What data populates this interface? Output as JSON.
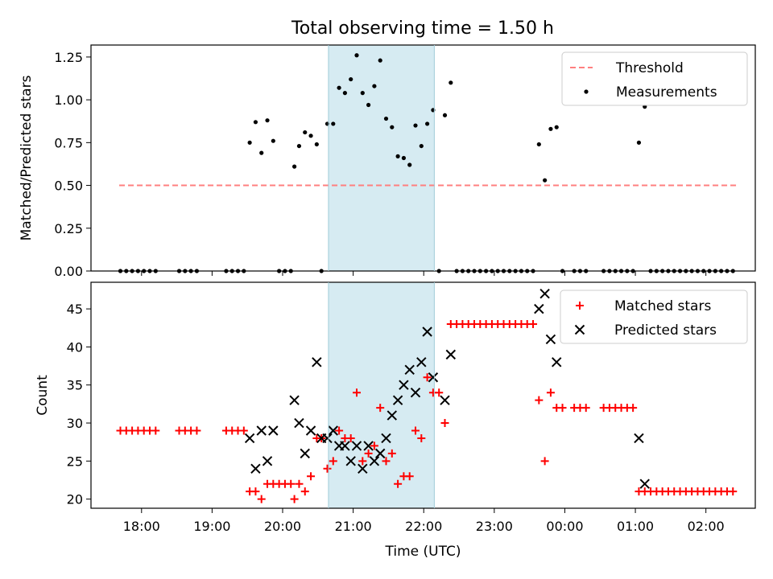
{
  "title": "Total observing time = 1.50 h",
  "chart_data": [
    {
      "type": "scatter",
      "ylabel": "Matched/Predicted stars",
      "xlabel": "",
      "xlim": [
        "17:17",
        "02:42"
      ],
      "ylim": [
        0,
        1.32
      ],
      "yticks": [
        "0.00",
        "0.25",
        "0.50",
        "0.75",
        "1.00",
        "1.25"
      ],
      "legend": "top-right",
      "highlight_window": [
        "20:39",
        "22:09"
      ],
      "series": [
        {
          "name": "Threshold",
          "style": "dashed-line",
          "color": "#ff7f7f",
          "points": [
            [
              "17:41",
              0.5
            ],
            [
              "02:27",
              0.5
            ]
          ]
        },
        {
          "name": "Measurements",
          "style": "dot",
          "color": "#000000",
          "points": [
            [
              "17:42",
              0
            ],
            [
              "17:47",
              0
            ],
            [
              "17:52",
              0
            ],
            [
              "17:57",
              0
            ],
            [
              "18:02",
              0
            ],
            [
              "18:07",
              0
            ],
            [
              "18:12",
              0
            ],
            [
              "18:32",
              0
            ],
            [
              "18:37",
              0
            ],
            [
              "18:42",
              0
            ],
            [
              "18:47",
              0
            ],
            [
              "19:12",
              0
            ],
            [
              "19:17",
              0
            ],
            [
              "19:22",
              0
            ],
            [
              "19:27",
              0
            ],
            [
              "19:32",
              0.75
            ],
            [
              "19:37",
              0.87
            ],
            [
              "19:42",
              0.69
            ],
            [
              "19:47",
              0.88
            ],
            [
              "19:52",
              0.76
            ],
            [
              "19:57",
              0
            ],
            [
              "20:02",
              0
            ],
            [
              "20:07",
              0
            ],
            [
              "20:10",
              0.61
            ],
            [
              "20:14",
              0.73
            ],
            [
              "20:19",
              0.81
            ],
            [
              "20:24",
              0.79
            ],
            [
              "20:29",
              0.74
            ],
            [
              "20:33",
              0
            ],
            [
              "20:38",
              0.86
            ],
            [
              "20:43",
              0.86
            ],
            [
              "20:48",
              1.07
            ],
            [
              "20:53",
              1.04
            ],
            [
              "20:58",
              1.12
            ],
            [
              "21:03",
              1.26
            ],
            [
              "21:08",
              1.04
            ],
            [
              "21:13",
              0.97
            ],
            [
              "21:18",
              1.08
            ],
            [
              "21:23",
              1.23
            ],
            [
              "21:28",
              0.89
            ],
            [
              "21:33",
              0.84
            ],
            [
              "21:38",
              0.67
            ],
            [
              "21:43",
              0.66
            ],
            [
              "21:48",
              0.62
            ],
            [
              "21:53",
              0.85
            ],
            [
              "21:58",
              0.73
            ],
            [
              "22:03",
              0.86
            ],
            [
              "22:08",
              0.94
            ],
            [
              "22:13",
              0
            ],
            [
              "22:18",
              0.91
            ],
            [
              "22:23",
              1.1
            ],
            [
              "22:28",
              0
            ],
            [
              "22:33",
              0
            ],
            [
              "22:38",
              0
            ],
            [
              "22:43",
              0
            ],
            [
              "22:48",
              0
            ],
            [
              "22:53",
              0
            ],
            [
              "22:58",
              0
            ],
            [
              "23:03",
              0
            ],
            [
              "23:08",
              0
            ],
            [
              "23:13",
              0
            ],
            [
              "23:18",
              0
            ],
            [
              "23:23",
              0
            ],
            [
              "23:28",
              0
            ],
            [
              "23:33",
              0
            ],
            [
              "23:38",
              0.74
            ],
            [
              "23:43",
              0.53
            ],
            [
              "23:48",
              0.83
            ],
            [
              "23:53",
              0.84
            ],
            [
              "23:58",
              0
            ],
            [
              "00:08",
              0
            ],
            [
              "00:13",
              0
            ],
            [
              "00:18",
              0
            ],
            [
              "00:33",
              0
            ],
            [
              "00:38",
              0
            ],
            [
              "00:43",
              0
            ],
            [
              "00:48",
              0
            ],
            [
              "00:53",
              0
            ],
            [
              "00:58",
              0
            ],
            [
              "01:03",
              0.75
            ],
            [
              "01:08",
              0.96
            ],
            [
              "01:13",
              0
            ],
            [
              "01:18",
              0
            ],
            [
              "01:23",
              0
            ],
            [
              "01:28",
              0
            ],
            [
              "01:33",
              0
            ],
            [
              "01:38",
              0
            ],
            [
              "01:43",
              0
            ],
            [
              "01:48",
              0
            ],
            [
              "01:53",
              0
            ],
            [
              "01:58",
              0
            ],
            [
              "02:03",
              0
            ],
            [
              "02:08",
              0
            ],
            [
              "02:13",
              0
            ],
            [
              "02:18",
              0
            ],
            [
              "02:23",
              0
            ]
          ]
        }
      ]
    },
    {
      "type": "scatter",
      "ylabel": "Count",
      "xlabel": "Time (UTC)",
      "xlim": [
        "17:17",
        "02:42"
      ],
      "ylim": [
        18.8,
        48.5
      ],
      "yticks": [
        "20",
        "25",
        "30",
        "35",
        "40",
        "45"
      ],
      "xticks": [
        "18:00",
        "19:00",
        "20:00",
        "21:00",
        "22:00",
        "23:00",
        "00:00",
        "01:00",
        "02:00"
      ],
      "legend": "top-right",
      "highlight_window": [
        "20:39",
        "22:09"
      ],
      "series": [
        {
          "name": "Matched stars",
          "style": "plus",
          "color": "#ff0000",
          "points": [
            [
              "17:42",
              29
            ],
            [
              "17:47",
              29
            ],
            [
              "17:52",
              29
            ],
            [
              "17:57",
              29
            ],
            [
              "18:02",
              29
            ],
            [
              "18:07",
              29
            ],
            [
              "18:12",
              29
            ],
            [
              "18:32",
              29
            ],
            [
              "18:37",
              29
            ],
            [
              "18:42",
              29
            ],
            [
              "18:47",
              29
            ],
            [
              "19:12",
              29
            ],
            [
              "19:17",
              29
            ],
            [
              "19:22",
              29
            ],
            [
              "19:27",
              29
            ],
            [
              "19:32",
              21
            ],
            [
              "19:37",
              21
            ],
            [
              "19:42",
              20
            ],
            [
              "19:47",
              22
            ],
            [
              "19:52",
              22
            ],
            [
              "19:57",
              22
            ],
            [
              "20:02",
              22
            ],
            [
              "20:07",
              22
            ],
            [
              "20:10",
              20
            ],
            [
              "20:14",
              22
            ],
            [
              "20:19",
              21
            ],
            [
              "20:24",
              23
            ],
            [
              "20:29",
              28
            ],
            [
              "20:33",
              28
            ],
            [
              "20:38",
              24
            ],
            [
              "20:43",
              25
            ],
            [
              "20:48",
              29
            ],
            [
              "20:53",
              28
            ],
            [
              "20:58",
              28
            ],
            [
              "21:03",
              34
            ],
            [
              "21:08",
              25
            ],
            [
              "21:13",
              26
            ],
            [
              "21:18",
              27
            ],
            [
              "21:23",
              32
            ],
            [
              "21:28",
              25
            ],
            [
              "21:33",
              26
            ],
            [
              "21:38",
              22
            ],
            [
              "21:43",
              23
            ],
            [
              "21:48",
              23
            ],
            [
              "21:53",
              29
            ],
            [
              "21:58",
              28
            ],
            [
              "22:03",
              36
            ],
            [
              "22:08",
              34
            ],
            [
              "22:13",
              34
            ],
            [
              "22:18",
              30
            ],
            [
              "22:23",
              43
            ],
            [
              "22:28",
              43
            ],
            [
              "22:33",
              43
            ],
            [
              "22:38",
              43
            ],
            [
              "22:43",
              43
            ],
            [
              "22:48",
              43
            ],
            [
              "22:53",
              43
            ],
            [
              "22:58",
              43
            ],
            [
              "23:03",
              43
            ],
            [
              "23:08",
              43
            ],
            [
              "23:13",
              43
            ],
            [
              "23:18",
              43
            ],
            [
              "23:23",
              43
            ],
            [
              "23:28",
              43
            ],
            [
              "23:33",
              43
            ],
            [
              "23:38",
              33
            ],
            [
              "23:43",
              25
            ],
            [
              "23:48",
              34
            ],
            [
              "23:53",
              32
            ],
            [
              "23:58",
              32
            ],
            [
              "00:08",
              32
            ],
            [
              "00:13",
              32
            ],
            [
              "00:18",
              32
            ],
            [
              "00:33",
              32
            ],
            [
              "00:38",
              32
            ],
            [
              "00:43",
              32
            ],
            [
              "00:48",
              32
            ],
            [
              "00:53",
              32
            ],
            [
              "00:58",
              32
            ],
            [
              "01:03",
              21
            ],
            [
              "01:08",
              21
            ],
            [
              "01:13",
              21
            ],
            [
              "01:18",
              21
            ],
            [
              "01:23",
              21
            ],
            [
              "01:28",
              21
            ],
            [
              "01:33",
              21
            ],
            [
              "01:38",
              21
            ],
            [
              "01:43",
              21
            ],
            [
              "01:48",
              21
            ],
            [
              "01:53",
              21
            ],
            [
              "01:58",
              21
            ],
            [
              "02:03",
              21
            ],
            [
              "02:08",
              21
            ],
            [
              "02:13",
              21
            ],
            [
              "02:18",
              21
            ],
            [
              "02:23",
              21
            ]
          ]
        },
        {
          "name": "Predicted stars",
          "style": "x",
          "color": "#000000",
          "points": [
            [
              "19:32",
              28
            ],
            [
              "19:37",
              24
            ],
            [
              "19:42",
              29
            ],
            [
              "19:47",
              25
            ],
            [
              "19:52",
              29
            ],
            [
              "20:10",
              33
            ],
            [
              "20:14",
              30
            ],
            [
              "20:19",
              26
            ],
            [
              "20:24",
              29
            ],
            [
              "20:29",
              38
            ],
            [
              "20:33",
              28
            ],
            [
              "20:38",
              28
            ],
            [
              "20:43",
              29
            ],
            [
              "20:48",
              27
            ],
            [
              "20:53",
              27
            ],
            [
              "20:58",
              25
            ],
            [
              "21:03",
              27
            ],
            [
              "21:08",
              24
            ],
            [
              "21:13",
              27
            ],
            [
              "21:18",
              25
            ],
            [
              "21:23",
              26
            ],
            [
              "21:28",
              28
            ],
            [
              "21:33",
              31
            ],
            [
              "21:38",
              33
            ],
            [
              "21:43",
              35
            ],
            [
              "21:48",
              37
            ],
            [
              "21:53",
              34
            ],
            [
              "21:58",
              38
            ],
            [
              "22:03",
              42
            ],
            [
              "22:08",
              36
            ],
            [
              "22:18",
              33
            ],
            [
              "22:23",
              39
            ],
            [
              "23:38",
              45
            ],
            [
              "23:43",
              47
            ],
            [
              "23:48",
              41
            ],
            [
              "23:53",
              38
            ],
            [
              "01:03",
              28
            ],
            [
              "01:08",
              22
            ]
          ]
        }
      ]
    }
  ]
}
